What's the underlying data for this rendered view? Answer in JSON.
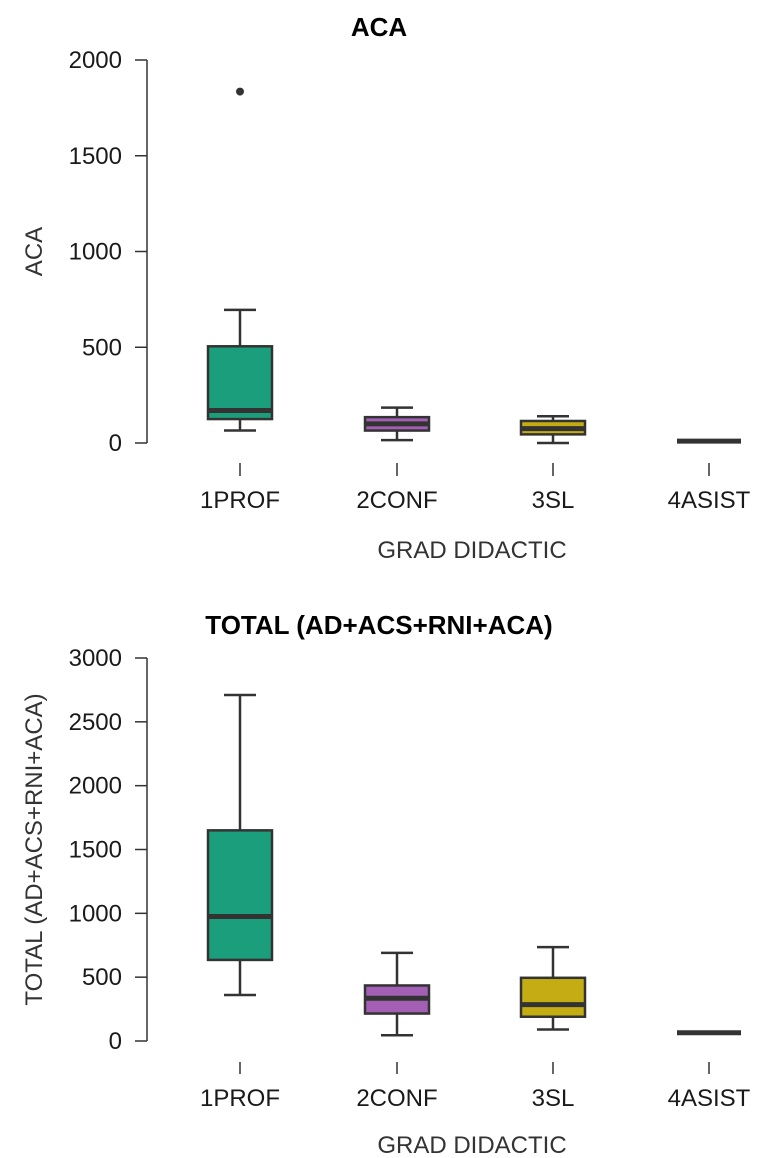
{
  "chart_data": [
    {
      "type": "boxplot",
      "title": "ACA",
      "xlabel": "GRAD DIDACTIC",
      "ylabel": "ACA",
      "ylim": [
        0,
        2000
      ],
      "yticks": [
        0,
        500,
        1000,
        1500,
        2000
      ],
      "grid": false,
      "legend": "none",
      "categories": [
        "1PROF",
        "2CONF",
        "3SL",
        "4ASIST"
      ],
      "colors": [
        "#1a9e7b",
        "#a35fb3",
        "#c4ad12",
        "#333333"
      ],
      "boxes": [
        {
          "category": "1PROF",
          "whisker_low": 65,
          "q1": 125,
          "median": 170,
          "q3": 505,
          "whisker_high": 695,
          "outliers": [
            1835
          ]
        },
        {
          "category": "2CONF",
          "whisker_low": 15,
          "q1": 65,
          "median": 100,
          "q3": 135,
          "whisker_high": 185,
          "outliers": []
        },
        {
          "category": "3SL",
          "whisker_low": 0,
          "q1": 45,
          "median": 75,
          "q3": 115,
          "whisker_high": 140,
          "outliers": []
        },
        {
          "category": "4ASIST",
          "whisker_low": 10,
          "q1": 10,
          "median": 10,
          "q3": 10,
          "whisker_high": 10,
          "outliers": []
        }
      ]
    },
    {
      "type": "boxplot",
      "title": "TOTAL (AD+ACS+RNI+ACA)",
      "xlabel": "GRAD DIDACTIC",
      "ylabel": "TOTAL (AD+ACS+RNI+ACA)",
      "ylim": [
        0,
        3000
      ],
      "yticks": [
        0,
        500,
        1000,
        1500,
        2000,
        2500,
        3000
      ],
      "grid": false,
      "legend": "none",
      "categories": [
        "1PROF",
        "2CONF",
        "3SL",
        "4ASIST"
      ],
      "colors": [
        "#1a9e7b",
        "#a35fb3",
        "#c4ad12",
        "#333333"
      ],
      "boxes": [
        {
          "category": "1PROF",
          "whisker_low": 360,
          "q1": 635,
          "median": 975,
          "q3": 1650,
          "whisker_high": 2710,
          "outliers": []
        },
        {
          "category": "2CONF",
          "whisker_low": 45,
          "q1": 215,
          "median": 335,
          "q3": 435,
          "whisker_high": 690,
          "outliers": []
        },
        {
          "category": "3SL",
          "whisker_low": 90,
          "q1": 190,
          "median": 285,
          "q3": 495,
          "whisker_high": 735,
          "outliers": []
        },
        {
          "category": "4ASIST",
          "whisker_low": 65,
          "q1": 65,
          "median": 65,
          "q3": 65,
          "whisker_high": 65,
          "outliers": []
        }
      ]
    }
  ]
}
